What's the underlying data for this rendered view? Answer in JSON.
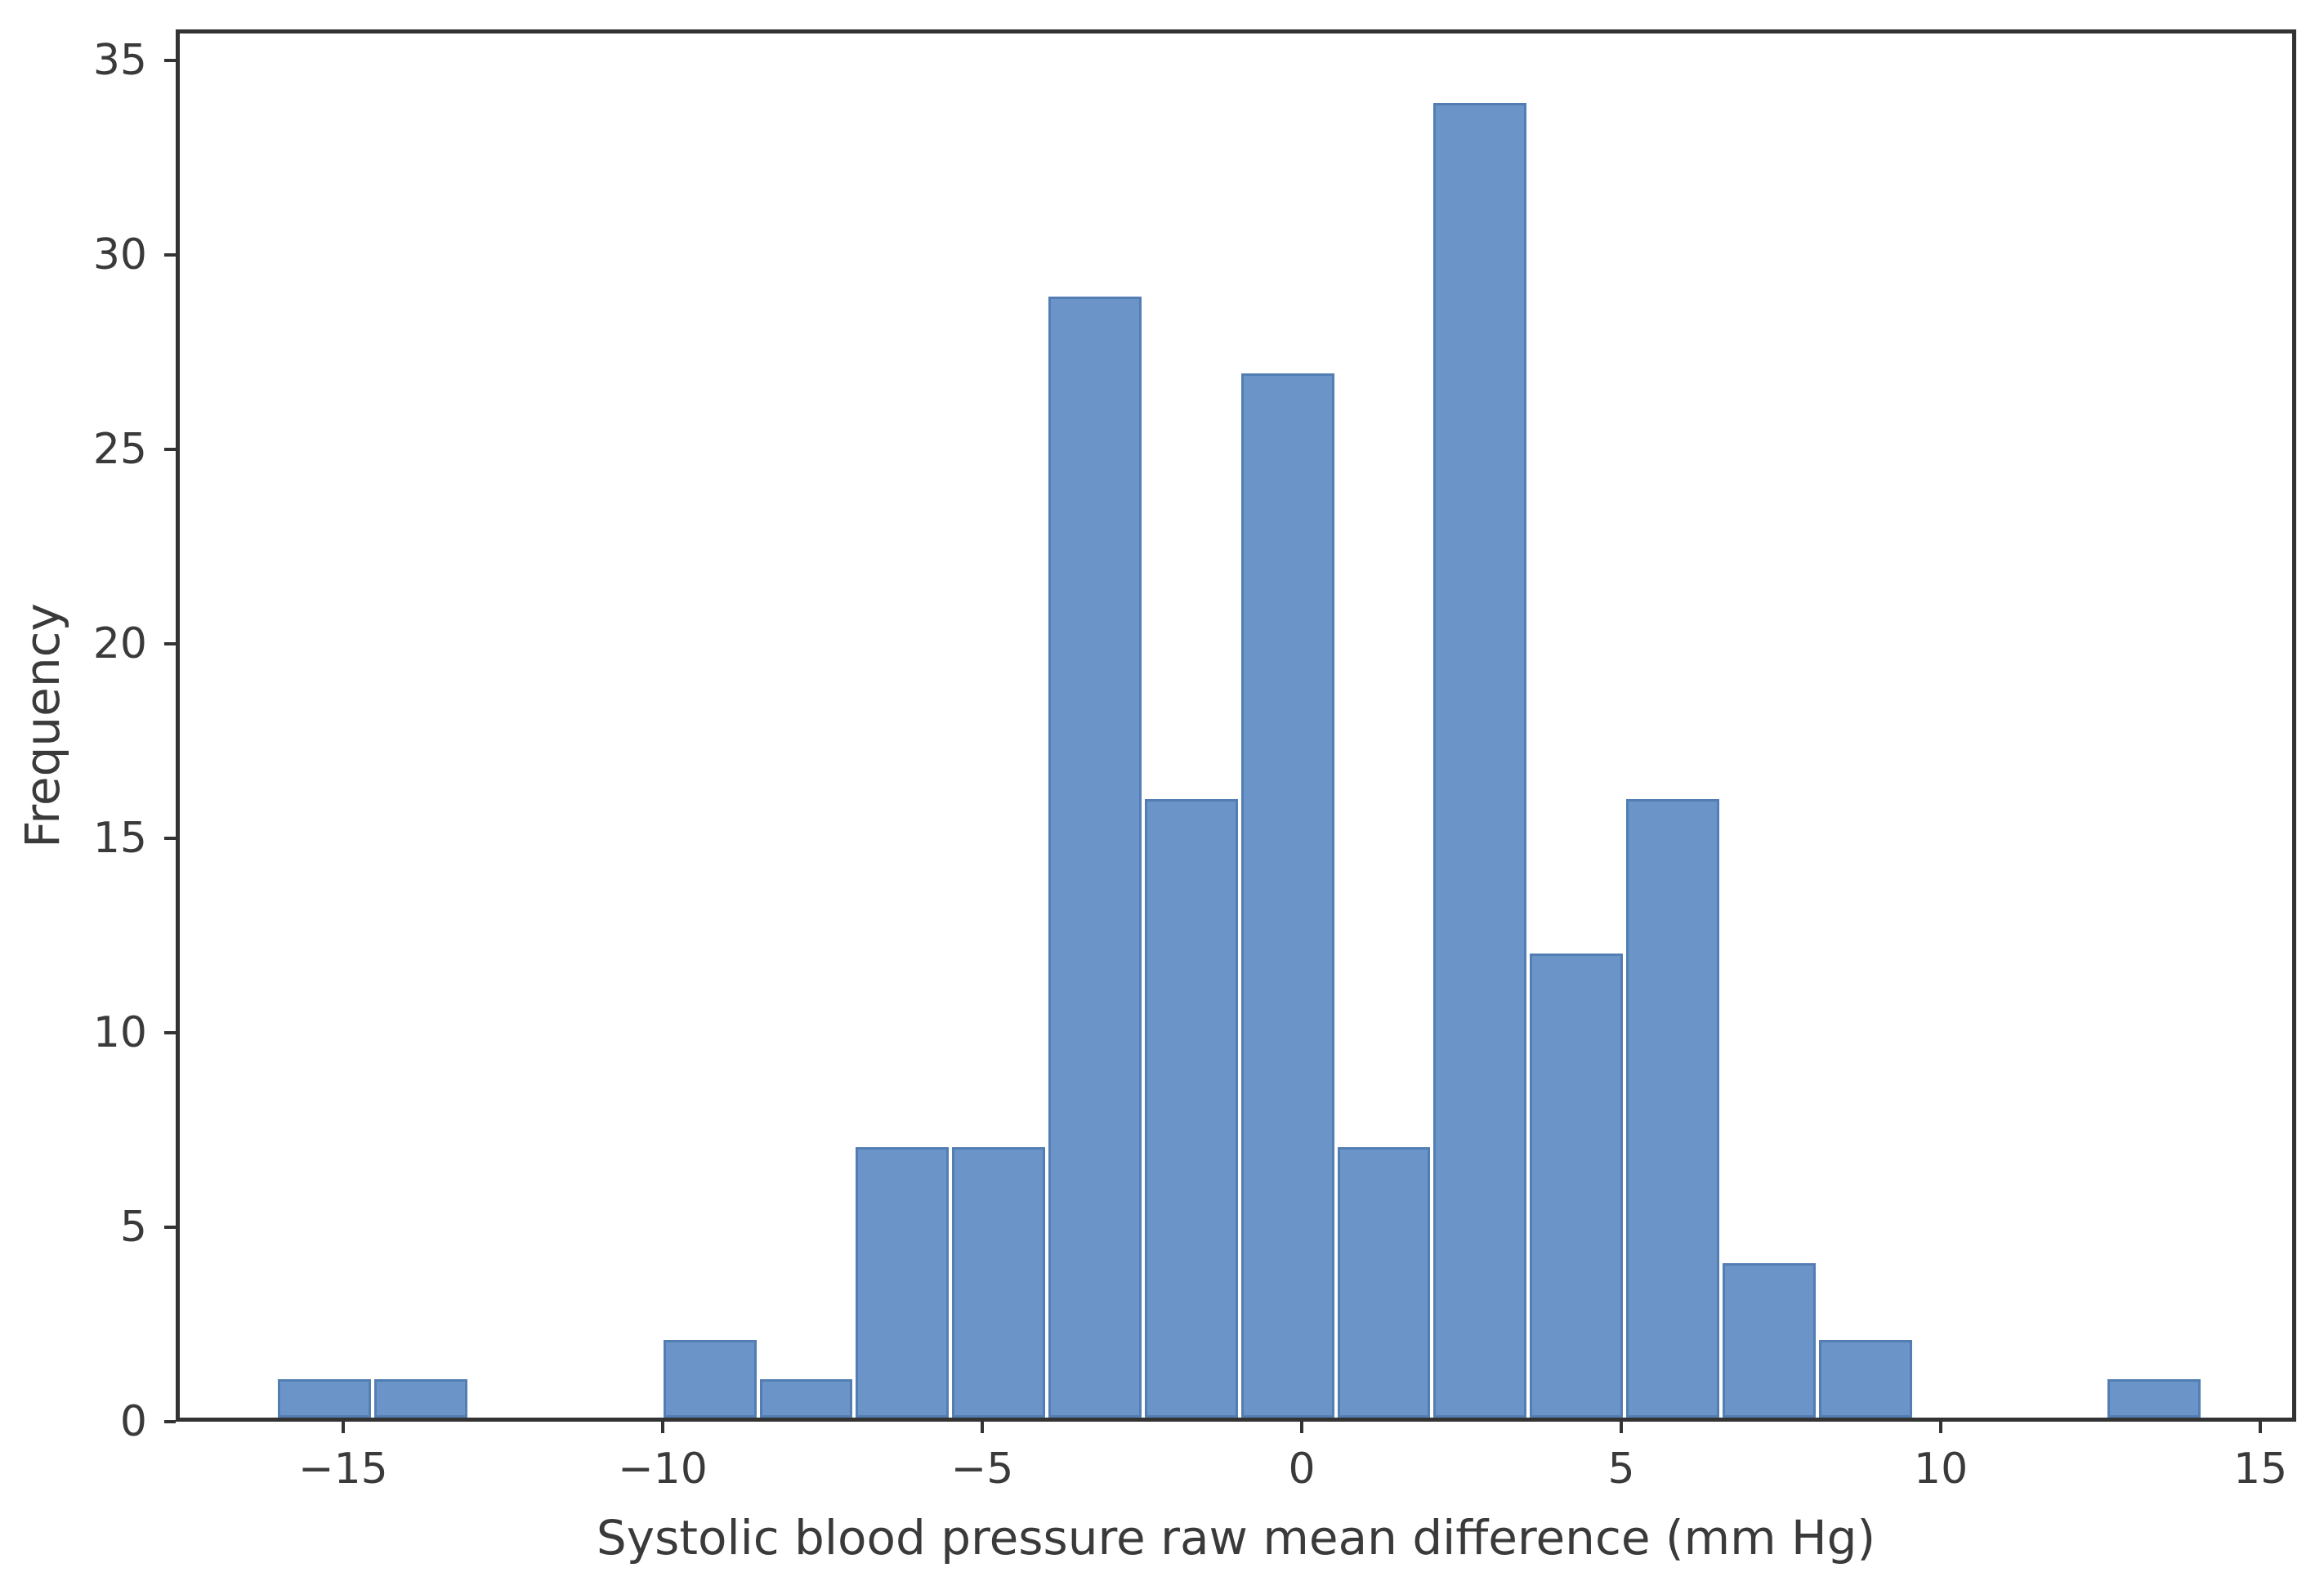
{
  "chart_data": {
    "type": "bar",
    "subtype": "histogram",
    "title": "",
    "xlabel": "Systolic blood pressure raw mean difference (mm Hg)",
    "ylabel": "Frequency",
    "bins": {
      "start": -16.1,
      "width": 1.5125,
      "counts": [
        1,
        1,
        0,
        0,
        2,
        1,
        7,
        7,
        29,
        16,
        27,
        7,
        34,
        12,
        16,
        4,
        2,
        0,
        0,
        1
      ]
    },
    "total_observations": 167,
    "x_ticks": [
      -15,
      -10,
      -5,
      0,
      5,
      10,
      15
    ],
    "x_tick_labels": [
      "−15",
      "−10",
      "−5",
      "0",
      "5",
      "10",
      "15"
    ],
    "y_ticks": [
      0,
      5,
      10,
      15,
      20,
      25,
      30,
      35
    ],
    "y_tick_labels": [
      "0",
      "5",
      "10",
      "15",
      "20",
      "25",
      "30",
      "35"
    ],
    "xlim": [
      -17.62,
      15.56
    ],
    "ylim": [
      0,
      35.8
    ],
    "grid": false,
    "legend": null,
    "colors": {
      "bar_fill": "#6b95c8",
      "bar_edge": "#527eb3",
      "spine": "#333333",
      "tick_text": "#3a3a3a",
      "background": "#ffffff"
    }
  }
}
